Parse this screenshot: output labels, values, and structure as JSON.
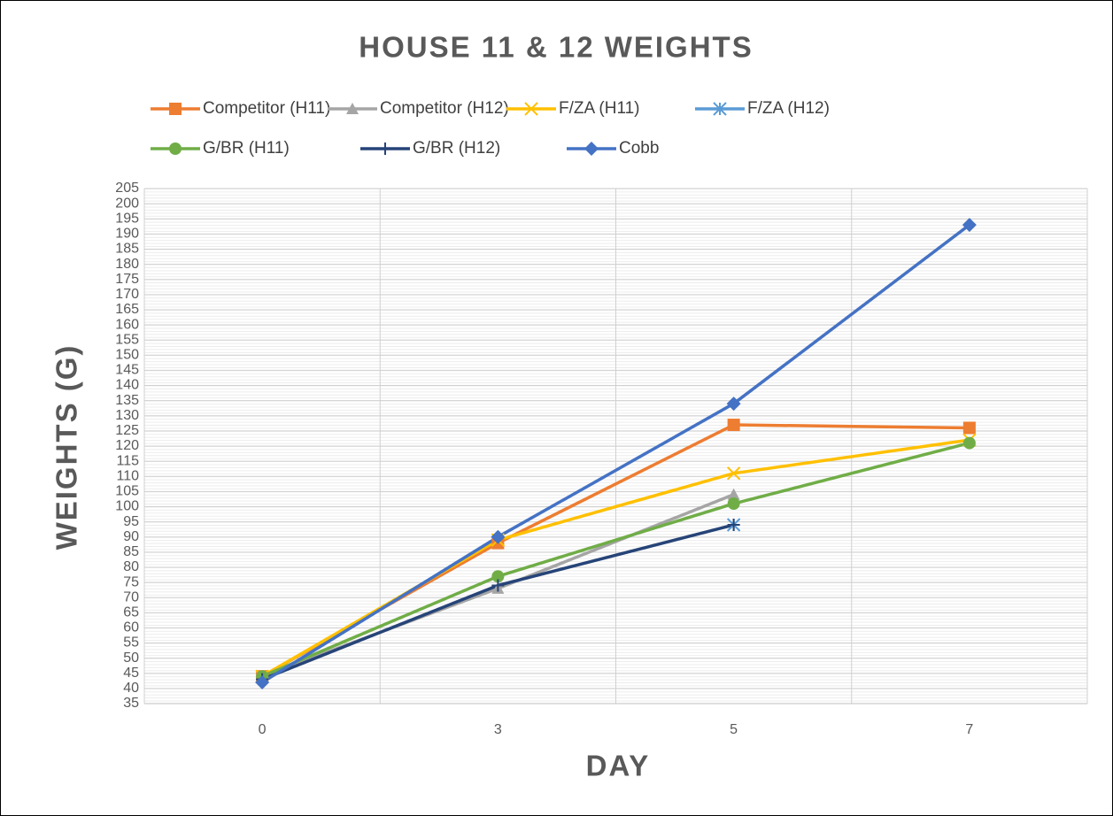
{
  "chart_data": {
    "type": "line",
    "title": "HOUSE 11 & 12 WEIGHTS",
    "x_label": "DAY",
    "y_label": "WEIGHTS (G)",
    "categories": [
      "0",
      "3",
      "5",
      "7"
    ],
    "ylim": [
      35,
      205
    ],
    "yticks": [
      35,
      40,
      45,
      50,
      55,
      60,
      65,
      70,
      75,
      80,
      85,
      90,
      95,
      100,
      105,
      110,
      115,
      120,
      125,
      130,
      135,
      140,
      145,
      150,
      155,
      160,
      165,
      170,
      175,
      180,
      185,
      190,
      195,
      200,
      205
    ],
    "grid": true,
    "series": [
      {
        "name": "Competitor (H11)",
        "color": "#ed7d31",
        "marker": "square",
        "values": [
          44,
          88,
          127,
          126
        ]
      },
      {
        "name": "Competitor (H12)",
        "color": "#a5a5a5",
        "marker": "triangle",
        "values": [
          44,
          73,
          104,
          null
        ]
      },
      {
        "name": "F/ZA (H11)",
        "color": "#ffc000",
        "marker": "x",
        "values": [
          44,
          89,
          111,
          122
        ]
      },
      {
        "name": "F/ZA (H12)",
        "color": "#5b9bd5",
        "marker": "star",
        "values": [
          null,
          null,
          94,
          null
        ]
      },
      {
        "name": "G/BR (H11)",
        "color": "#70ad47",
        "marker": "circle",
        "values": [
          44,
          77,
          101,
          121
        ]
      },
      {
        "name": "G/BR (H12)",
        "color": "#264478",
        "marker": "plus",
        "values": [
          43,
          74,
          94,
          null
        ]
      },
      {
        "name": "Cobb",
        "color": "#4472c4",
        "marker": "diamond",
        "values": [
          42,
          90,
          134,
          193
        ]
      }
    ]
  }
}
